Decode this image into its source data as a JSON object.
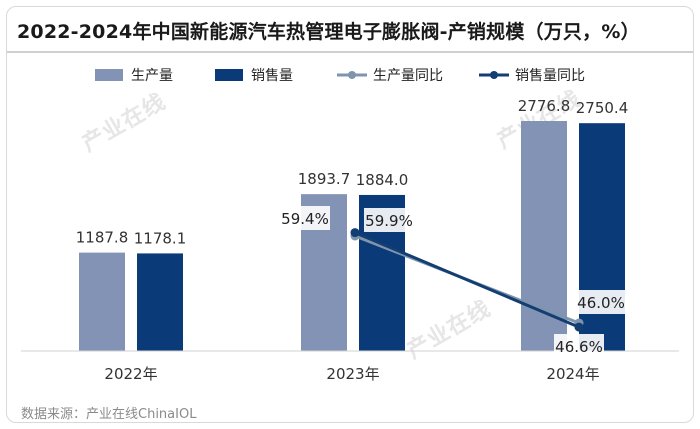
{
  "title": "2022-2024年中国新能源汽车热管理电子膨胀阀-产销规模（万只，%）",
  "source": "数据来源：产业在线ChinaIOL",
  "watermark": "产业在线",
  "chart_data": {
    "type": "bar",
    "categories": [
      "2022年",
      "2023年",
      "2024年"
    ],
    "series": [
      {
        "name": "生产量",
        "kind": "bar",
        "color": "#8393b6",
        "values": [
          1187.8,
          1893.7,
          2776.8
        ]
      },
      {
        "name": "销售量",
        "kind": "bar",
        "color": "#0b3a78",
        "values": [
          1178.1,
          1884.0,
          2750.4
        ]
      },
      {
        "name": "生产量同比",
        "kind": "line",
        "color": "#7f95ad",
        "values": [
          null,
          59.4,
          46.6
        ],
        "unit": "%"
      },
      {
        "name": "销售量同比",
        "kind": "line",
        "color": "#123e72",
        "values": [
          null,
          59.9,
          46.0
        ],
        "unit": "%"
      }
    ],
    "bar_labels": [
      [
        "1187.8",
        "1893.7",
        "2776.8"
      ],
      [
        "1178.1",
        "1884.0",
        "2750.4"
      ]
    ],
    "line_labels": [
      [
        null,
        "59.4%",
        "46.6%"
      ],
      [
        null,
        "59.9%",
        "46.0%"
      ]
    ],
    "legend": "top",
    "grid": false
  }
}
